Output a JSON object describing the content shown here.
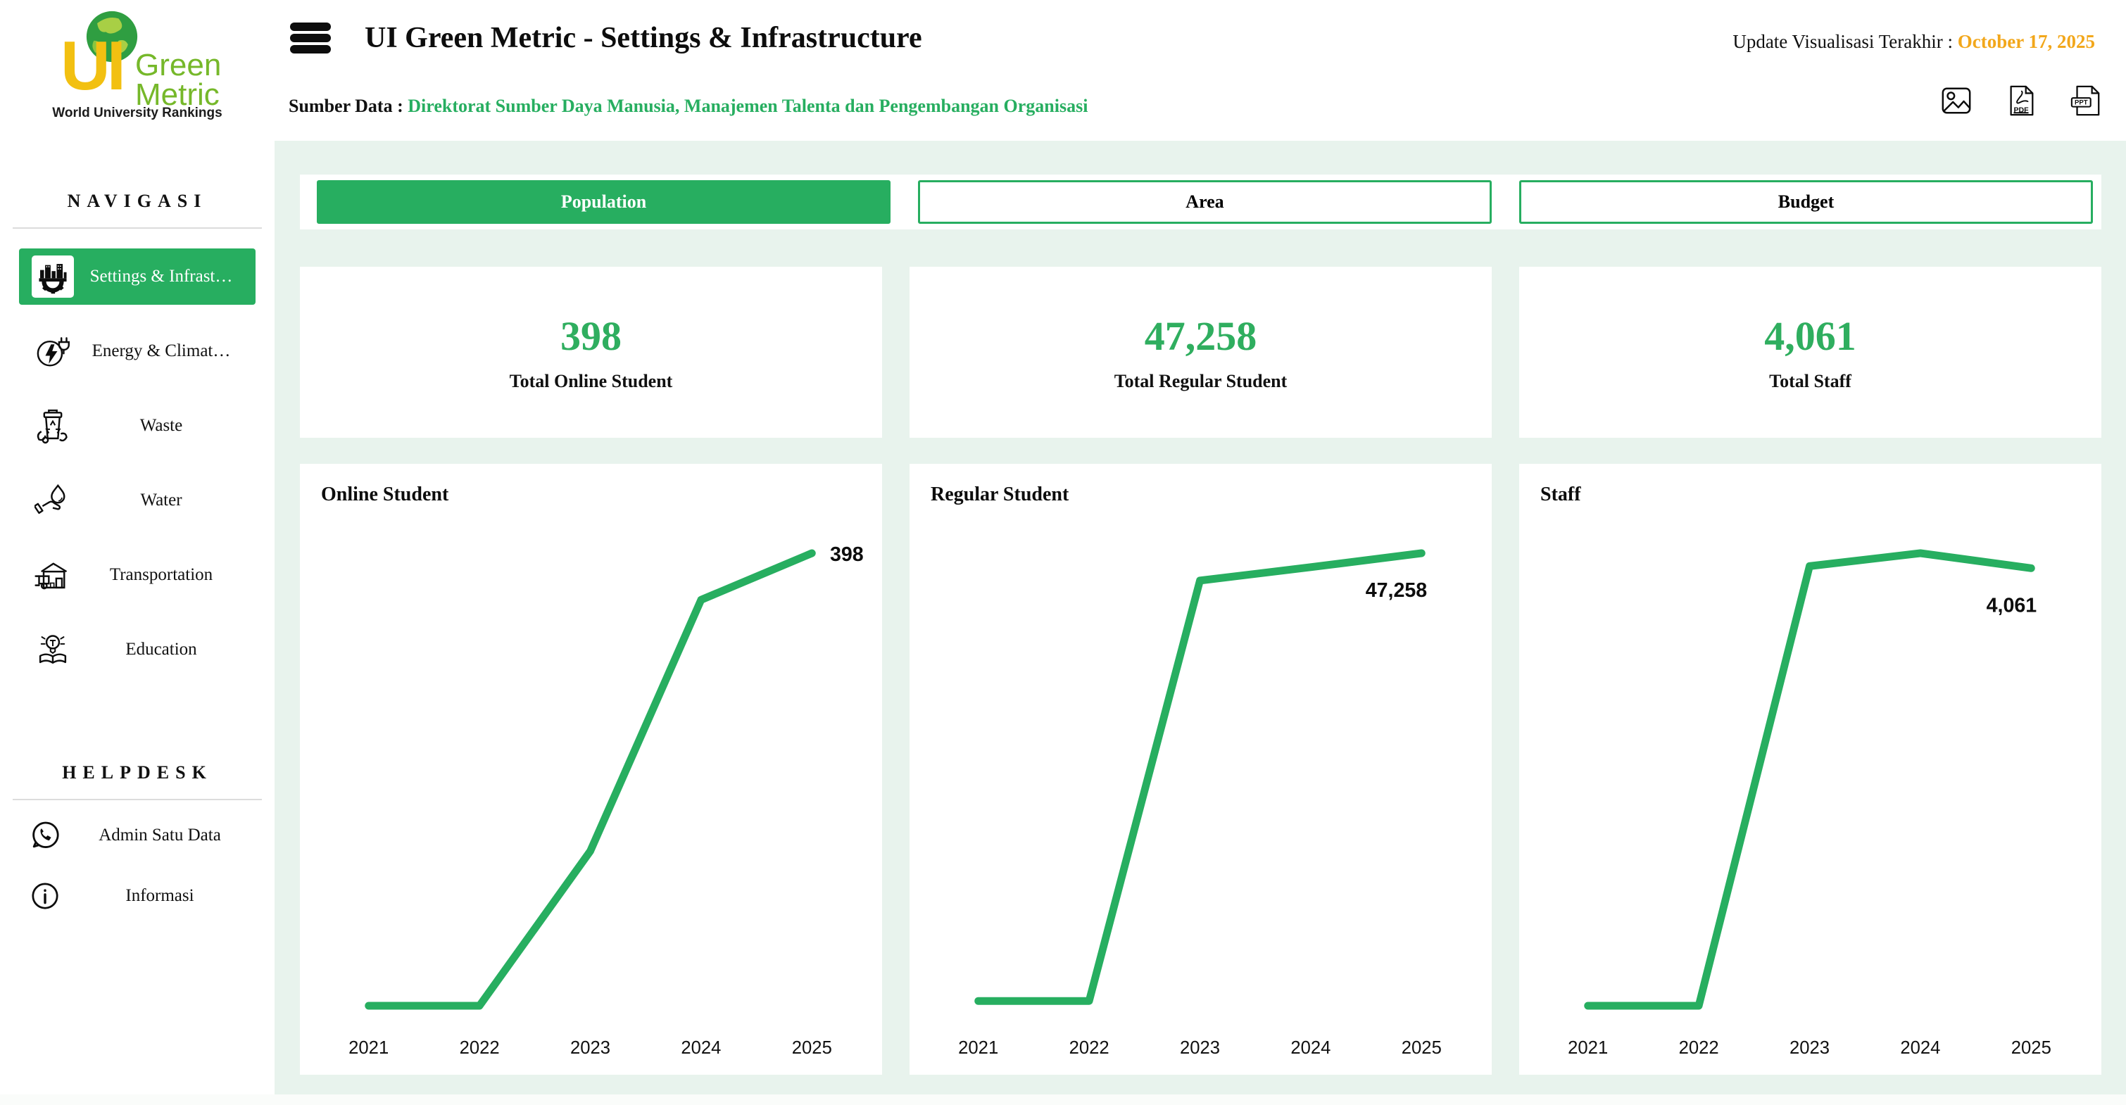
{
  "app": {
    "title": "UI Green Metric - Settings & Infrastructure",
    "update_label": "Update Visualisasi Terakhir : ",
    "update_date": "October 17, 2025",
    "source_label": "Sumber Data : ",
    "source_value": "Direktorat Sumber Daya Manusia, Manajemen Talenta dan Pengembangan Organisasi"
  },
  "logo": {
    "ui": "UI",
    "line1": "Green",
    "line2": "Metric",
    "tagline": "World University Rankings"
  },
  "export": {
    "pdf_label": "PDF",
    "ppt_label": "PPT"
  },
  "sidebar": {
    "nav_heading": "NAVIGASI",
    "items": [
      {
        "label": "Settings & Infrast…",
        "icon": "infrastructure-icon",
        "active": true
      },
      {
        "label": "Energy & Climat…",
        "icon": "energy-climate-icon",
        "active": false
      },
      {
        "label": "Waste",
        "icon": "waste-icon",
        "active": false
      },
      {
        "label": "Water",
        "icon": "water-icon",
        "active": false
      },
      {
        "label": "Transportation",
        "icon": "transportation-icon",
        "active": false
      },
      {
        "label": "Education",
        "icon": "education-icon",
        "active": false
      }
    ],
    "help_heading": "HELPDESK",
    "help_items": [
      {
        "label": "Admin Satu Data",
        "icon": "whatsapp-icon"
      },
      {
        "label": "Informasi",
        "icon": "info-icon"
      }
    ]
  },
  "tabs": [
    {
      "label": "Population",
      "active": true
    },
    {
      "label": "Area",
      "active": false
    },
    {
      "label": "Budget",
      "active": false
    }
  ],
  "stats": [
    {
      "value": "398",
      "label": "Total Online Student"
    },
    {
      "value": "47,258",
      "label": "Total Regular Student"
    },
    {
      "value": "4,061",
      "label": "Total Staff"
    }
  ],
  "colors": {
    "accent_green": "#27ae60",
    "value_green": "#2fae5f",
    "date_orange": "#f2a71b",
    "content_bg": "#e8f3ed",
    "line_green": "#27ae60"
  },
  "chart_data": [
    {
      "type": "line",
      "title": "Online Student",
      "categories": [
        "2021",
        "2022",
        "2023",
        "2024",
        "2025"
      ],
      "values": [
        0,
        0,
        136,
        357,
        398
      ],
      "end_label": "398",
      "ylim": [
        0,
        398
      ],
      "line_color": "#27ae60",
      "label_placement": "right",
      "grid": false,
      "legend": "none"
    },
    {
      "type": "line",
      "title": "Regular Student",
      "categories": [
        "2021",
        "2022",
        "2023",
        "2024",
        "2025"
      ],
      "values": [
        500,
        500,
        44400,
        45800,
        47258
      ],
      "end_label": "47,258",
      "ylim": [
        0,
        47258
      ],
      "line_color": "#27ae60",
      "label_placement": "below",
      "grid": false,
      "legend": "none"
    },
    {
      "type": "line",
      "title": "Staff",
      "categories": [
        "2021",
        "2022",
        "2023",
        "2024",
        "2025"
      ],
      "values": [
        0,
        0,
        4080,
        4200,
        4061
      ],
      "end_label": "4,061",
      "ylim": [
        0,
        4200
      ],
      "line_color": "#27ae60",
      "label_placement": "below",
      "grid": false,
      "legend": "none"
    }
  ]
}
